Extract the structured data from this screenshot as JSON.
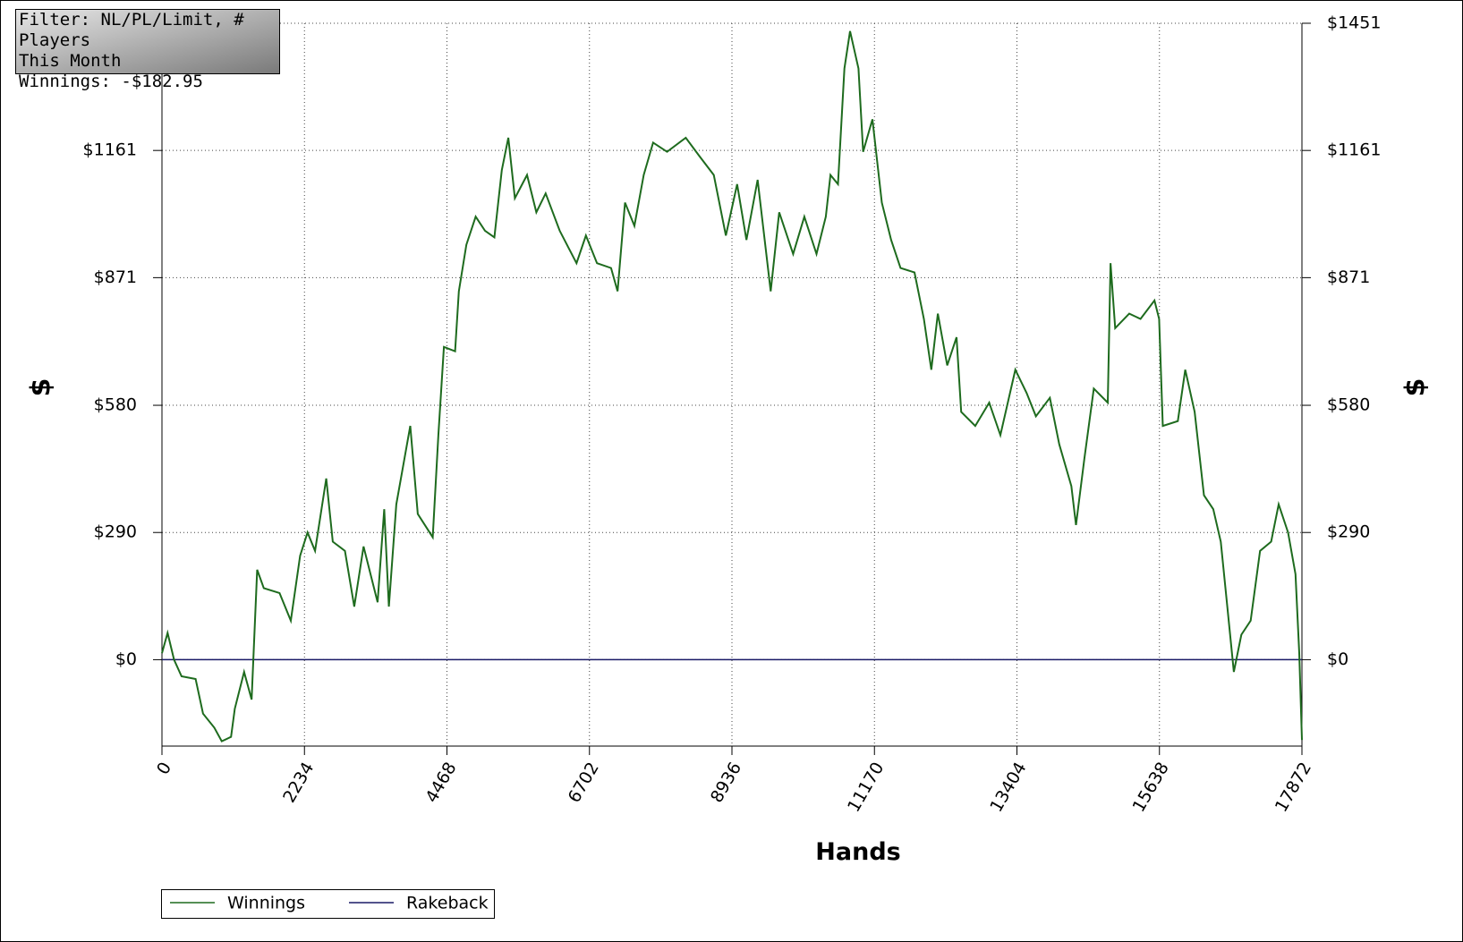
{
  "chart_data": {
    "type": "line",
    "annotations": [
      "Filter: NL/PL/Limit, # Players",
      "This Month",
      "Winnings: -$182.95"
    ],
    "x_label": "Hands",
    "y_label": "$",
    "xlim": [
      0,
      17872
    ],
    "xticks": [
      0,
      2234,
      4468,
      6702,
      8936,
      11170,
      13404,
      15638,
      17872
    ],
    "ylim": [
      -197,
      1451
    ],
    "yticks": [
      {
        "value": 0,
        "label": "$0"
      },
      {
        "value": 290,
        "label": "$290"
      },
      {
        "value": 580,
        "label": "$580"
      },
      {
        "value": 871,
        "label": "$871"
      },
      {
        "value": 1161,
        "label": "$1161"
      },
      {
        "value": 1451,
        "label": "$1451"
      }
    ],
    "grid": true,
    "series": [
      {
        "name": "Winnings",
        "color": "#1e6b1e",
        "x": [
          0,
          88,
          190,
          307,
          527,
          644,
          820,
          937,
          1083,
          1142,
          1288,
          1405,
          1493,
          1596,
          1844,
          2020,
          2166,
          2283,
          2400,
          2576,
          2678,
          2869,
          3015,
          3161,
          3381,
          3484,
          3557,
          3674,
          3893,
          4010,
          4245,
          4333,
          4420,
          4596,
          4655,
          4772,
          4918,
          5064,
          5211,
          5328,
          5430,
          5533,
          5723,
          5870,
          6016,
          6236,
          6499,
          6646,
          6821,
          7041,
          7143,
          7260,
          7407,
          7553,
          7700,
          7919,
          8212,
          8431,
          8651,
          8841,
          9017,
          9163,
          9339,
          9544,
          9676,
          9896,
          10071,
          10262,
          10408,
          10480,
          10598,
          10700,
          10788,
          10920,
          10993,
          11139,
          11286,
          11432,
          11579,
          11798,
          11945,
          12062,
          12164,
          12311,
          12457,
          12530,
          12750,
          12969,
          13145,
          13379,
          13555,
          13701,
          13920,
          14067,
          14257,
          14330,
          14462,
          14609,
          14828,
          14872,
          14945,
          15165,
          15341,
          15560,
          15633,
          15691,
          15926,
          16043,
          16190,
          16336,
          16482,
          16600,
          16702,
          16805,
          16922,
          17068,
          17215,
          17390,
          17507,
          17654,
          17771,
          17830,
          17872
        ],
        "values": [
          15,
          61,
          0,
          -38,
          -44,
          -123,
          -155,
          -186,
          -176,
          -112,
          -28,
          -91,
          205,
          163,
          152,
          89,
          237,
          290,
          248,
          413,
          269,
          248,
          121,
          258,
          131,
          343,
          121,
          354,
          533,
          332,
          279,
          512,
          713,
          703,
          840,
          946,
          1010,
          978,
          963,
          1116,
          1190,
          1052,
          1105,
          1020,
          1063,
          978,
          904,
          967,
          904,
          893,
          840,
          1042,
          989,
          1105,
          1179,
          1158,
          1190,
          1147,
          1105,
          967,
          1084,
          957,
          1094,
          840,
          1020,
          925,
          1010,
          925,
          1010,
          1105,
          1084,
          1348,
          1433,
          1348,
          1158,
          1232,
          1042,
          957,
          893,
          883,
          777,
          661,
          789,
          671,
          735,
          565,
          533,
          586,
          512,
          661,
          608,
          555,
          597,
          491,
          396,
          307,
          459,
          618,
          586,
          904,
          756,
          789,
          777,
          819,
          777,
          533,
          544,
          661,
          565,
          375,
          343,
          269,
          121,
          -28,
          57,
          89,
          248,
          269,
          354,
          290,
          195,
          15,
          -183
        ]
      },
      {
        "name": "Rakeback",
        "color": "#1a1a66",
        "x": [
          0,
          17872
        ],
        "values": [
          0,
          0
        ]
      }
    ]
  }
}
